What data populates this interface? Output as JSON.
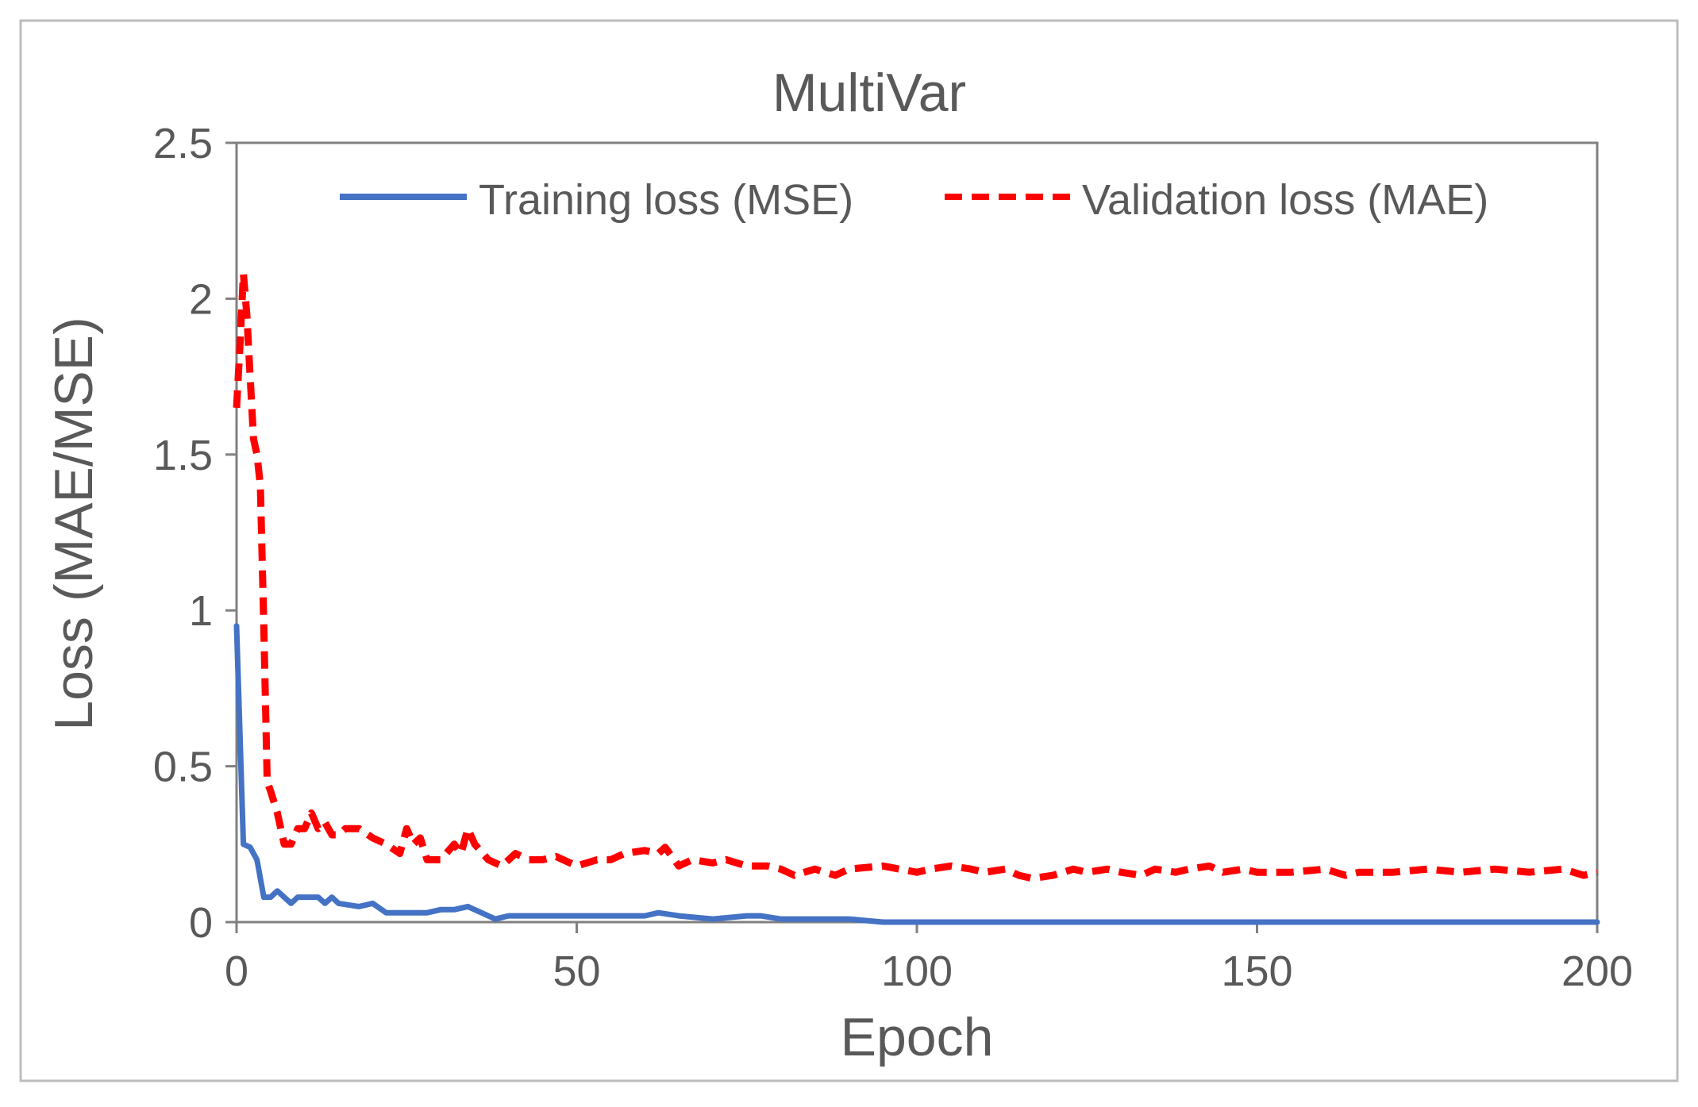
{
  "chart_data": {
    "type": "line",
    "title": "MultiVar",
    "xlabel": "Epoch",
    "ylabel": "Loss (MAE/MSE)",
    "xlim": [
      0,
      200
    ],
    "ylim": [
      0,
      2.5
    ],
    "x_ticks": [
      0,
      50,
      100,
      150,
      200
    ],
    "y_ticks": [
      0,
      0.5,
      1,
      1.5,
      2,
      2.5
    ],
    "x_tick_labels": [
      "0",
      "50",
      "100",
      "150",
      "200"
    ],
    "y_tick_labels": [
      "0",
      "0.5",
      "1",
      "1.5",
      "2",
      "2.5"
    ],
    "grid": false,
    "legend_position": "top",
    "series": [
      {
        "name": "Training loss (MSE)",
        "color": "#4472c4",
        "style": "solid",
        "points": [
          [
            0,
            0.95
          ],
          [
            1,
            0.25
          ],
          [
            2,
            0.24
          ],
          [
            3,
            0.2
          ],
          [
            4,
            0.08
          ],
          [
            5,
            0.08
          ],
          [
            6,
            0.1
          ],
          [
            7,
            0.08
          ],
          [
            8,
            0.06
          ],
          [
            9,
            0.08
          ],
          [
            10,
            0.08
          ],
          [
            12,
            0.08
          ],
          [
            13,
            0.06
          ],
          [
            14,
            0.08
          ],
          [
            15,
            0.06
          ],
          [
            18,
            0.05
          ],
          [
            20,
            0.06
          ],
          [
            22,
            0.03
          ],
          [
            25,
            0.03
          ],
          [
            28,
            0.03
          ],
          [
            30,
            0.04
          ],
          [
            32,
            0.04
          ],
          [
            34,
            0.05
          ],
          [
            36,
            0.03
          ],
          [
            38,
            0.01
          ],
          [
            40,
            0.02
          ],
          [
            45,
            0.02
          ],
          [
            50,
            0.02
          ],
          [
            55,
            0.02
          ],
          [
            60,
            0.02
          ],
          [
            62,
            0.03
          ],
          [
            65,
            0.02
          ],
          [
            70,
            0.01
          ],
          [
            75,
            0.02
          ],
          [
            77,
            0.02
          ],
          [
            80,
            0.01
          ],
          [
            85,
            0.01
          ],
          [
            90,
            0.01
          ],
          [
            95,
            0.0
          ],
          [
            100,
            0.0
          ],
          [
            110,
            0.0
          ],
          [
            120,
            0.0
          ],
          [
            140,
            0.0
          ],
          [
            160,
            0.0
          ],
          [
            180,
            0.0
          ],
          [
            200,
            0.0
          ]
        ]
      },
      {
        "name": "Validation loss (MAE)",
        "color": "#ff0000",
        "style": "dashed",
        "points": [
          [
            0,
            1.65
          ],
          [
            0.5,
            1.85
          ],
          [
            1,
            2.08
          ],
          [
            1.5,
            1.95
          ],
          [
            2,
            1.75
          ],
          [
            2.5,
            1.55
          ],
          [
            3,
            1.5
          ],
          [
            3.5,
            1.4
          ],
          [
            4,
            0.95
          ],
          [
            4.5,
            0.45
          ],
          [
            5,
            0.42
          ],
          [
            6,
            0.35
          ],
          [
            7,
            0.25
          ],
          [
            8,
            0.25
          ],
          [
            9,
            0.3
          ],
          [
            10,
            0.3
          ],
          [
            11,
            0.35
          ],
          [
            12,
            0.3
          ],
          [
            13,
            0.32
          ],
          [
            14,
            0.28
          ],
          [
            15,
            0.28
          ],
          [
            16,
            0.3
          ],
          [
            18,
            0.3
          ],
          [
            20,
            0.27
          ],
          [
            22,
            0.25
          ],
          [
            24,
            0.22
          ],
          [
            25,
            0.3
          ],
          [
            26,
            0.25
          ],
          [
            27,
            0.27
          ],
          [
            28,
            0.2
          ],
          [
            30,
            0.2
          ],
          [
            32,
            0.25
          ],
          [
            33,
            0.22
          ],
          [
            34,
            0.3
          ],
          [
            35,
            0.25
          ],
          [
            37,
            0.2
          ],
          [
            39,
            0.18
          ],
          [
            41,
            0.22
          ],
          [
            43,
            0.2
          ],
          [
            45,
            0.2
          ],
          [
            47,
            0.21
          ],
          [
            50,
            0.18
          ],
          [
            53,
            0.2
          ],
          [
            55,
            0.2
          ],
          [
            57,
            0.22
          ],
          [
            60,
            0.23
          ],
          [
            62,
            0.22
          ],
          [
            63,
            0.24
          ],
          [
            65,
            0.18
          ],
          [
            67,
            0.2
          ],
          [
            70,
            0.19
          ],
          [
            72,
            0.2
          ],
          [
            75,
            0.18
          ],
          [
            78,
            0.18
          ],
          [
            80,
            0.17
          ],
          [
            82,
            0.15
          ],
          [
            85,
            0.17
          ],
          [
            88,
            0.15
          ],
          [
            90,
            0.17
          ],
          [
            95,
            0.18
          ],
          [
            100,
            0.16
          ],
          [
            102,
            0.17
          ],
          [
            105,
            0.18
          ],
          [
            108,
            0.17
          ],
          [
            110,
            0.16
          ],
          [
            113,
            0.17
          ],
          [
            115,
            0.15
          ],
          [
            117,
            0.14
          ],
          [
            120,
            0.15
          ],
          [
            123,
            0.17
          ],
          [
            125,
            0.16
          ],
          [
            128,
            0.17
          ],
          [
            130,
            0.16
          ],
          [
            133,
            0.15
          ],
          [
            135,
            0.17
          ],
          [
            138,
            0.16
          ],
          [
            140,
            0.17
          ],
          [
            143,
            0.18
          ],
          [
            145,
            0.16
          ],
          [
            148,
            0.17
          ],
          [
            150,
            0.16
          ],
          [
            155,
            0.16
          ],
          [
            160,
            0.17
          ],
          [
            163,
            0.15
          ],
          [
            165,
            0.16
          ],
          [
            170,
            0.16
          ],
          [
            175,
            0.17
          ],
          [
            180,
            0.16
          ],
          [
            185,
            0.17
          ],
          [
            190,
            0.16
          ],
          [
            195,
            0.17
          ],
          [
            198,
            0.15
          ],
          [
            200,
            0.16
          ]
        ]
      }
    ]
  }
}
